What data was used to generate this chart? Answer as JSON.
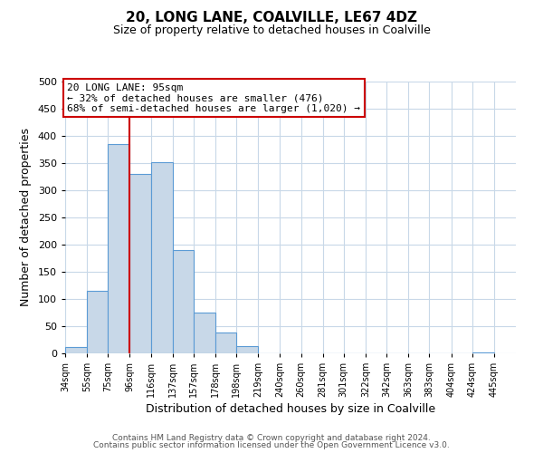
{
  "title": "20, LONG LANE, COALVILLE, LE67 4DZ",
  "subtitle": "Size of property relative to detached houses in Coalville",
  "xlabel": "Distribution of detached houses by size in Coalville",
  "ylabel": "Number of detached properties",
  "bar_color": "#c8d8e8",
  "bar_edge_color": "#5b9bd5",
  "bar_left_edges": [
    34,
    55,
    75,
    96,
    116,
    137,
    157,
    178,
    198,
    219,
    240,
    260,
    281,
    301,
    322,
    342,
    363,
    383,
    404,
    424
  ],
  "bar_widths": [
    21,
    20,
    21,
    20,
    21,
    20,
    21,
    20,
    21,
    21,
    20,
    21,
    20,
    21,
    20,
    21,
    20,
    21,
    20,
    21
  ],
  "bar_heights": [
    11,
    115,
    385,
    330,
    352,
    190,
    75,
    38,
    13,
    0,
    0,
    0,
    0,
    0,
    0,
    0,
    0,
    0,
    0,
    2
  ],
  "tick_labels": [
    "34sqm",
    "55sqm",
    "75sqm",
    "96sqm",
    "116sqm",
    "137sqm",
    "157sqm",
    "178sqm",
    "198sqm",
    "219sqm",
    "240sqm",
    "260sqm",
    "281sqm",
    "301sqm",
    "322sqm",
    "342sqm",
    "363sqm",
    "383sqm",
    "404sqm",
    "424sqm",
    "445sqm"
  ],
  "tick_positions": [
    34,
    55,
    75,
    96,
    116,
    137,
    157,
    178,
    198,
    219,
    240,
    260,
    281,
    301,
    322,
    342,
    363,
    383,
    404,
    424,
    445
  ],
  "ylim": [
    0,
    500
  ],
  "yticks": [
    0,
    50,
    100,
    150,
    200,
    250,
    300,
    350,
    400,
    450,
    500
  ],
  "xlim_min": 34,
  "xlim_max": 466,
  "property_line_x": 96,
  "annotation_line1": "20 LONG LANE: 95sqm",
  "annotation_line2": "← 32% of detached houses are smaller (476)",
  "annotation_line3": "68% of semi-detached houses are larger (1,020) →",
  "annotation_box_color": "#ffffff",
  "annotation_box_edge_color": "#cc0000",
  "property_line_color": "#cc0000",
  "footer_line1": "Contains HM Land Registry data © Crown copyright and database right 2024.",
  "footer_line2": "Contains public sector information licensed under the Open Government Licence v3.0.",
  "background_color": "#ffffff",
  "grid_color": "#c8d8e8"
}
